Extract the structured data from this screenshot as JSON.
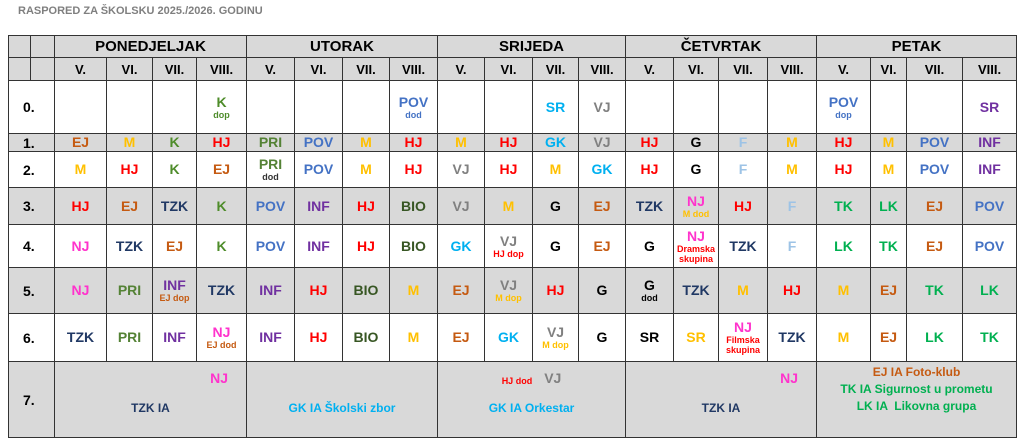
{
  "title": "RASPORED ZA ŠKOLSKU 2025./2026. GODINU",
  "days": [
    "PONEDJELJAK",
    "UTORAK",
    "SRIJEDA",
    "ČETVRTAK",
    "PETAK"
  ],
  "grades": [
    "V.",
    "VI.",
    "VII.",
    "VIII."
  ],
  "rows": [
    {
      "label": "0.",
      "cells": [
        null,
        null,
        null,
        {
          "text": "K",
          "color": "#4e8c2a",
          "note": "dop",
          "note_color": "#4e8c2a"
        },
        null,
        null,
        null,
        {
          "text": "POV",
          "color": "#4472c4",
          "note": "dod",
          "note_color": "#4472c4"
        },
        null,
        null,
        {
          "text": "SR",
          "color": "#00b0f0"
        },
        {
          "text": "VJ",
          "color": "#808080"
        },
        null,
        null,
        null,
        null,
        {
          "text": "POV",
          "color": "#4472c4",
          "note": "dop",
          "note_color": "#4472c4"
        },
        null,
        null,
        {
          "text": "SR",
          "color": "#7030a0"
        }
      ]
    },
    {
      "label": "1.",
      "cells": [
        {
          "text": "EJ",
          "color": "#c55a11"
        },
        {
          "text": "M",
          "color": "#ffc000"
        },
        {
          "text": "K",
          "color": "#4e8c2a"
        },
        {
          "text": "HJ",
          "color": "#ff0000"
        },
        {
          "text": "PRI",
          "color": "#548235"
        },
        {
          "text": "POV",
          "color": "#4472c4"
        },
        {
          "text": "M",
          "color": "#ffc000"
        },
        {
          "text": "HJ",
          "color": "#ff0000"
        },
        {
          "text": "M",
          "color": "#ffc000"
        },
        {
          "text": "HJ",
          "color": "#ff0000"
        },
        {
          "text": "GK",
          "color": "#00b0f0"
        },
        {
          "text": "VJ",
          "color": "#808080"
        },
        {
          "text": "HJ",
          "color": "#ff0000"
        },
        {
          "text": "G",
          "color": "#000000"
        },
        {
          "text": "F",
          "color": "#9dc3e6"
        },
        {
          "text": "M",
          "color": "#ffc000"
        },
        {
          "text": "HJ",
          "color": "#ff0000"
        },
        {
          "text": "M",
          "color": "#ffc000"
        },
        {
          "text": "POV",
          "color": "#4472c4"
        },
        {
          "text": "INF",
          "color": "#7030a0"
        }
      ]
    },
    {
      "label": "2.",
      "cells": [
        {
          "text": "M",
          "color": "#ffc000"
        },
        {
          "text": "HJ",
          "color": "#ff0000"
        },
        {
          "text": "K",
          "color": "#4e8c2a"
        },
        {
          "text": "EJ",
          "color": "#c55a11"
        },
        {
          "text": "PRI",
          "color": "#548235",
          "note": "dod",
          "note_color": "#333333"
        },
        {
          "text": "POV",
          "color": "#4472c4"
        },
        {
          "text": "M",
          "color": "#ffc000"
        },
        {
          "text": "HJ",
          "color": "#ff0000"
        },
        {
          "text": "VJ",
          "color": "#808080"
        },
        {
          "text": "HJ",
          "color": "#ff0000"
        },
        {
          "text": "M",
          "color": "#ffc000"
        },
        {
          "text": "GK",
          "color": "#00b0f0"
        },
        {
          "text": "HJ",
          "color": "#ff0000"
        },
        {
          "text": "G",
          "color": "#000000"
        },
        {
          "text": "F",
          "color": "#9dc3e6"
        },
        {
          "text": "M",
          "color": "#ffc000"
        },
        {
          "text": "HJ",
          "color": "#ff0000"
        },
        {
          "text": "M",
          "color": "#ffc000"
        },
        {
          "text": "POV",
          "color": "#4472c4"
        },
        {
          "text": "INF",
          "color": "#7030a0"
        }
      ]
    },
    {
      "label": "3.",
      "cells": [
        {
          "text": "HJ",
          "color": "#ff0000"
        },
        {
          "text": "EJ",
          "color": "#c55a11"
        },
        {
          "text": "TZK",
          "color": "#203864"
        },
        {
          "text": "K",
          "color": "#4e8c2a"
        },
        {
          "text": "POV",
          "color": "#4472c4"
        },
        {
          "text": "INF",
          "color": "#7030a0"
        },
        {
          "text": "HJ",
          "color": "#ff0000"
        },
        {
          "text": "BIO",
          "color": "#375623"
        },
        {
          "text": "VJ",
          "color": "#808080"
        },
        {
          "text": "M",
          "color": "#ffc000"
        },
        {
          "text": "G",
          "color": "#000000"
        },
        {
          "text": "EJ",
          "color": "#c55a11"
        },
        {
          "text": "TZK",
          "color": "#203864"
        },
        {
          "text": "NJ",
          "color": "#ff33cc",
          "note": "M dod",
          "note_color": "#ffc000"
        },
        {
          "text": "HJ",
          "color": "#ff0000"
        },
        {
          "text": "F",
          "color": "#9dc3e6"
        },
        {
          "text": "TK",
          "color": "#00b050"
        },
        {
          "text": "LK",
          "color": "#00b050"
        },
        {
          "text": "EJ",
          "color": "#c55a11"
        },
        {
          "text": "POV",
          "color": "#4472c4"
        }
      ]
    },
    {
      "label": "4.",
      "cells": [
        {
          "text": "NJ",
          "color": "#ff33cc"
        },
        {
          "text": "TZK",
          "color": "#203864"
        },
        {
          "text": "EJ",
          "color": "#c55a11"
        },
        {
          "text": "K",
          "color": "#4e8c2a"
        },
        {
          "text": "POV",
          "color": "#4472c4"
        },
        {
          "text": "INF",
          "color": "#7030a0"
        },
        {
          "text": "HJ",
          "color": "#ff0000"
        },
        {
          "text": "BIO",
          "color": "#375623"
        },
        {
          "text": "GK",
          "color": "#00b0f0"
        },
        {
          "text": "VJ",
          "color": "#808080",
          "note": "HJ dop",
          "note_color": "#ff0000"
        },
        {
          "text": "G",
          "color": "#000000"
        },
        {
          "text": "EJ",
          "color": "#c55a11"
        },
        {
          "text": "G",
          "color": "#000000"
        },
        {
          "text": "NJ",
          "color": "#ff33cc",
          "note": "Dramska skupina",
          "note_color": "#ff0000"
        },
        {
          "text": "TZK",
          "color": "#203864"
        },
        {
          "text": "F",
          "color": "#9dc3e6"
        },
        {
          "text": "LK",
          "color": "#00b050"
        },
        {
          "text": "TK",
          "color": "#00b050"
        },
        {
          "text": "EJ",
          "color": "#c55a11"
        },
        {
          "text": "POV",
          "color": "#4472c4"
        }
      ]
    },
    {
      "label": "5.",
      "cells": [
        {
          "text": "NJ",
          "color": "#ff33cc"
        },
        {
          "text": "PRI",
          "color": "#548235"
        },
        {
          "text": "INF",
          "color": "#7030a0",
          "note": "EJ dop",
          "note_color": "#c55a11"
        },
        {
          "text": "TZK",
          "color": "#203864"
        },
        {
          "text": "INF",
          "color": "#7030a0"
        },
        {
          "text": "HJ",
          "color": "#ff0000"
        },
        {
          "text": "BIO",
          "color": "#375623"
        },
        {
          "text": "M",
          "color": "#ffc000"
        },
        {
          "text": "EJ",
          "color": "#c55a11"
        },
        {
          "text": "VJ",
          "color": "#808080",
          "note": "M dop",
          "note_color": "#ffc000"
        },
        {
          "text": "HJ",
          "color": "#ff0000"
        },
        {
          "text": "G",
          "color": "#000000"
        },
        {
          "text": "G",
          "color": "#000000",
          "note": "dod",
          "note_color": "#000000"
        },
        {
          "text": "TZK",
          "color": "#203864"
        },
        {
          "text": "M",
          "color": "#ffc000"
        },
        {
          "text": "HJ",
          "color": "#ff0000"
        },
        {
          "text": "M",
          "color": "#ffc000"
        },
        {
          "text": "EJ",
          "color": "#c55a11"
        },
        {
          "text": "TK",
          "color": "#00b050"
        },
        {
          "text": "LK",
          "color": "#00b050"
        }
      ]
    },
    {
      "label": "6.",
      "cells": [
        {
          "text": "TZK",
          "color": "#203864"
        },
        {
          "text": "PRI",
          "color": "#548235"
        },
        {
          "text": "INF",
          "color": "#7030a0"
        },
        {
          "text": "NJ",
          "color": "#ff33cc",
          "note": "EJ dod",
          "note_color": "#c55a11"
        },
        {
          "text": "INF",
          "color": "#7030a0"
        },
        {
          "text": "HJ",
          "color": "#ff0000"
        },
        {
          "text": "BIO",
          "color": "#375623"
        },
        {
          "text": "M",
          "color": "#ffc000"
        },
        {
          "text": "EJ",
          "color": "#c55a11"
        },
        {
          "text": "GK",
          "color": "#00b0f0"
        },
        {
          "text": "VJ",
          "color": "#808080",
          "note": "M dop",
          "note_color": "#ffc000"
        },
        {
          "text": "G",
          "color": "#000000"
        },
        {
          "text": "SR",
          "color": "#000000"
        },
        {
          "text": "SR",
          "color": "#ffc000"
        },
        {
          "text": "NJ",
          "color": "#ff33cc",
          "note": "Filmska skupina",
          "note_color": "#ff0000"
        },
        {
          "text": "TZK",
          "color": "#203864"
        },
        {
          "text": "M",
          "color": "#ffc000"
        },
        {
          "text": "EJ",
          "color": "#c55a11"
        },
        {
          "text": "LK",
          "color": "#00b050"
        },
        {
          "text": "TK",
          "color": "#00b050"
        }
      ]
    }
  ],
  "last_row": {
    "label": "7.",
    "days": [
      {
        "top": [
          {
            "text": "NJ",
            "color": "#ff33cc"
          }
        ],
        "main": [
          {
            "text": "TZK IA",
            "color": "#203864"
          }
        ]
      },
      {
        "top": [],
        "main": [
          {
            "text": "GK IA Školski zbor",
            "color": "#00b0f0"
          }
        ]
      },
      {
        "top": [
          {
            "text": "HJ dod",
            "color": "#ff0000",
            "style": "note"
          },
          {
            "text": "VJ",
            "color": "#808080"
          }
        ],
        "main": [
          {
            "text": "GK IA Orkestar",
            "color": "#00b0f0"
          }
        ]
      },
      {
        "top": [
          {
            "text": "NJ",
            "color": "#ff33cc"
          }
        ],
        "main": [
          {
            "text": "TZK IA",
            "color": "#203864"
          }
        ]
      },
      {
        "top": [],
        "main": [
          {
            "text": "EJ IA Foto-klub",
            "color": "#c55a11"
          },
          {
            "text": "TK IA Sigurnost u prometu",
            "color": "#00b050"
          },
          {
            "text": "LK IA  Likovna grupa",
            "color": "#00b050"
          }
        ]
      }
    ]
  }
}
